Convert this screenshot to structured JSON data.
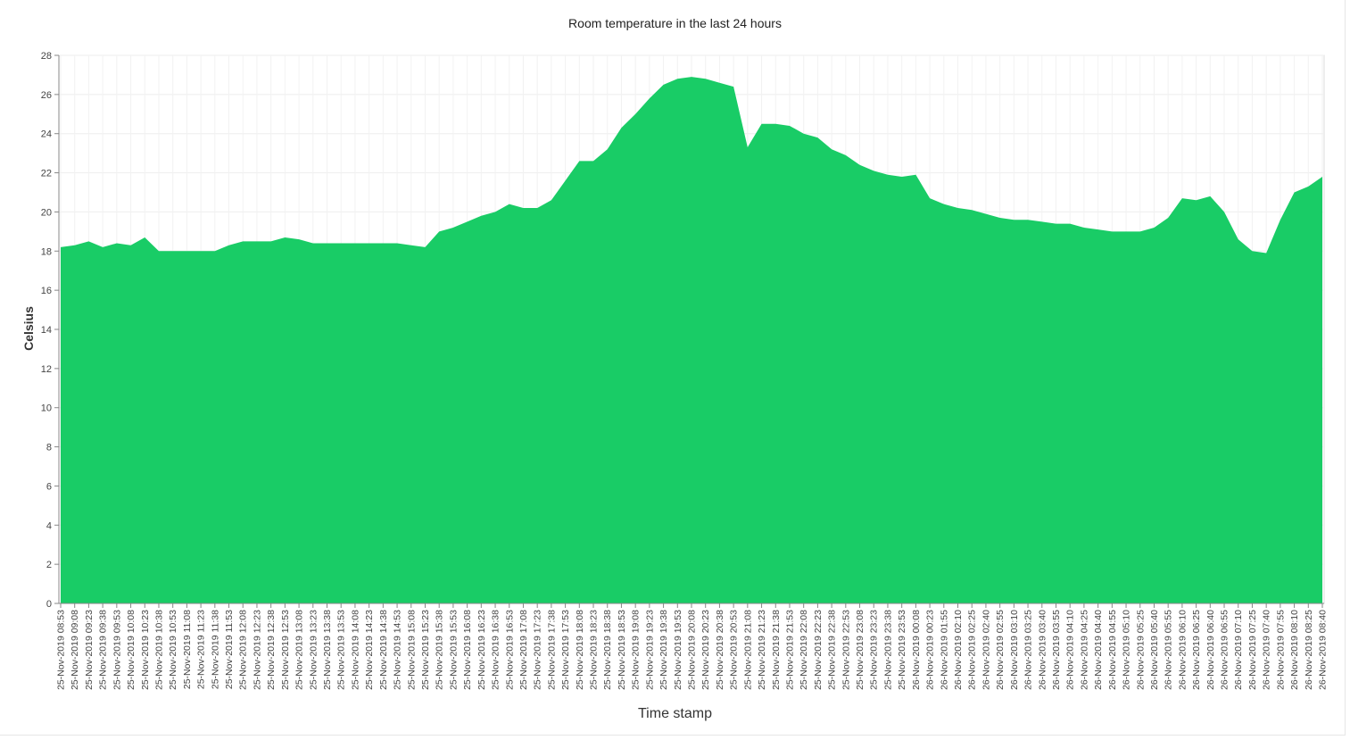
{
  "chart_data": {
    "type": "area",
    "title": "Room temperature in the last 24 hours",
    "xlabel": "Time stamp",
    "ylabel": "Celsius",
    "ylim": [
      0,
      28
    ],
    "yticks": [
      0,
      2,
      4,
      6,
      8,
      10,
      12,
      14,
      16,
      18,
      20,
      22,
      24,
      26,
      28
    ],
    "grid": true,
    "color": "#19cc66",
    "x_tick_labels": [
      "25-Nov-2019 08:53",
      "25-Nov-2019 09:08",
      "25-Nov-2019 09:23",
      "25-Nov-2019 09:38",
      "25-Nov-2019 09:53",
      "25-Nov-2019 10:08",
      "25-Nov-2019 10:23",
      "25-Nov-2019 10:38",
      "25-Nov-2019 10:53",
      "25-Nov-2019 11:08",
      "25-Nov-2019 11:23",
      "25-Nov-2019 11:38",
      "25-Nov-2019 11:53",
      "25-Nov-2019 12:08",
      "25-Nov-2019 12:23",
      "25-Nov-2019 12:38",
      "25-Nov-2019 12:53",
      "25-Nov-2019 13:08",
      "25-Nov-2019 13:23",
      "25-Nov-2019 13:38",
      "25-Nov-2019 13:53",
      "25-Nov-2019 14:08",
      "25-Nov-2019 14:23",
      "25-Nov-2019 14:38",
      "25-Nov-2019 14:53",
      "25-Nov-2019 15:08",
      "25-Nov-2019 15:23",
      "25-Nov-2019 15:38",
      "25-Nov-2019 15:53",
      "25-Nov-2019 16:08",
      "25-Nov-2019 16:23",
      "25-Nov-2019 16:38",
      "25-Nov-2019 16:53",
      "25-Nov-2019 17:08",
      "25-Nov-2019 17:23",
      "25-Nov-2019 17:38",
      "25-Nov-2019 17:53",
      "25-Nov-2019 18:08",
      "25-Nov-2019 18:23",
      "25-Nov-2019 18:38",
      "25-Nov-2019 18:53",
      "25-Nov-2019 19:08",
      "25-Nov-2019 19:23",
      "25-Nov-2019 19:38",
      "25-Nov-2019 19:53",
      "25-Nov-2019 20:08",
      "25-Nov-2019 20:23",
      "25-Nov-2019 20:38",
      "25-Nov-2019 20:53",
      "25-Nov-2019 21:08",
      "25-Nov-2019 21:23",
      "25-Nov-2019 21:38",
      "25-Nov-2019 21:53",
      "25-Nov-2019 22:08",
      "25-Nov-2019 22:23",
      "25-Nov-2019 22:38",
      "25-Nov-2019 22:53",
      "25-Nov-2019 23:08",
      "25-Nov-2019 23:23",
      "25-Nov-2019 23:38",
      "25-Nov-2019 23:53",
      "26-Nov-2019 00:08",
      "26-Nov-2019 00:23",
      "26-Nov-2019 01:55",
      "26-Nov-2019 02:10",
      "26-Nov-2019 02:25",
      "26-Nov-2019 02:40",
      "26-Nov-2019 02:55",
      "26-Nov-2019 03:10",
      "26-Nov-2019 03:25",
      "26-Nov-2019 03:40",
      "26-Nov-2019 03:55",
      "26-Nov-2019 04:10",
      "26-Nov-2019 04:25",
      "26-Nov-2019 04:40",
      "26-Nov-2019 04:55",
      "26-Nov-2019 05:10",
      "26-Nov-2019 05:25",
      "26-Nov-2019 05:40",
      "26-Nov-2019 05:55",
      "26-Nov-2019 06:10",
      "26-Nov-2019 06:25",
      "26-Nov-2019 06:40",
      "26-Nov-2019 06:55",
      "26-Nov-2019 07:10",
      "26-Nov-2019 07:25",
      "26-Nov-2019 07:40",
      "26-Nov-2019 07:55",
      "26-Nov-2019 08:10",
      "26-Nov-2019 08:25",
      "26-Nov-2019 08:40"
    ],
    "series": [
      {
        "values": [
          18.2,
          18.3,
          18.5,
          18.2,
          18.4,
          18.3,
          18.7,
          18.0,
          18.0,
          18.0,
          18.0,
          18.0,
          18.3,
          18.5,
          18.5,
          18.5,
          18.7,
          18.6,
          18.4,
          18.4,
          18.4,
          18.4,
          18.4,
          18.4,
          18.4,
          18.3,
          18.2,
          19.0,
          19.2,
          19.5,
          19.8,
          20.0,
          20.4,
          20.2,
          20.2,
          20.6,
          21.6,
          22.6,
          22.6,
          23.2,
          24.3,
          25.0,
          25.8,
          26.5,
          26.8,
          26.9,
          26.8,
          26.6,
          26.4,
          23.3,
          24.5,
          24.5,
          24.4,
          24.0,
          23.8,
          23.2,
          22.9,
          22.4,
          22.1,
          21.9,
          21.8,
          21.9,
          20.7,
          20.4,
          20.2,
          20.1,
          19.9,
          19.7,
          19.6,
          19.6,
          19.5,
          19.4,
          19.4,
          19.2,
          19.1,
          19.0,
          19.0,
          19.0,
          19.2,
          19.7,
          20.7,
          20.6,
          20.8,
          20.0,
          18.6,
          18.0,
          17.9,
          19.6,
          21.0,
          21.3,
          21.8
        ]
      }
    ]
  }
}
